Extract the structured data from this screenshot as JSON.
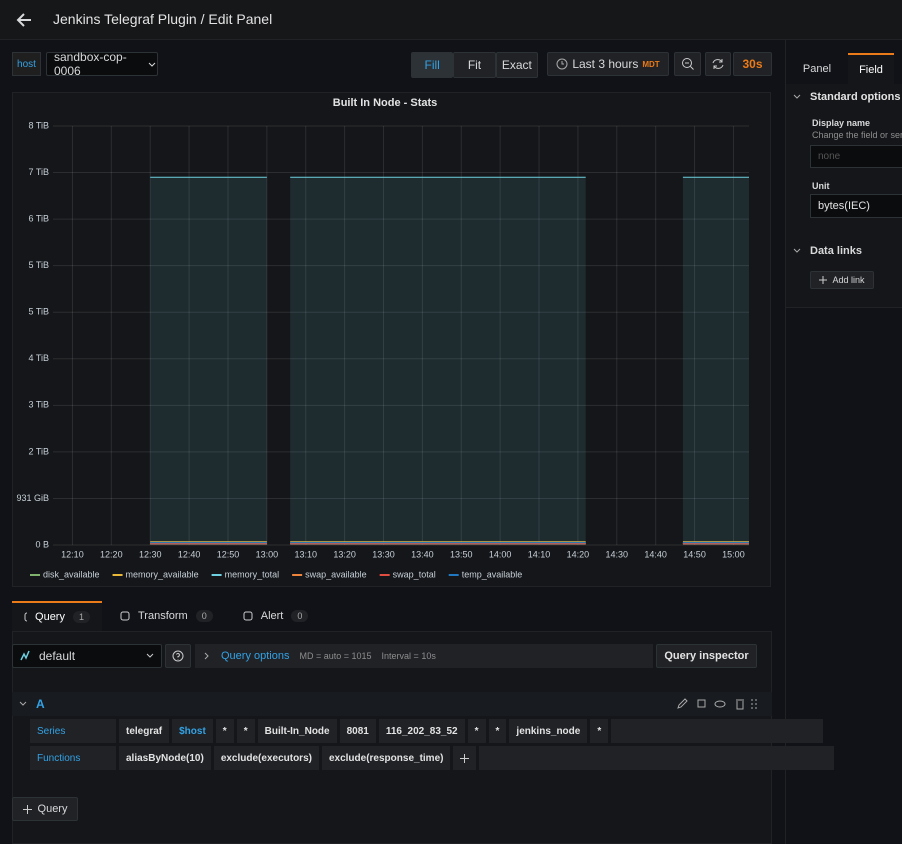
{
  "header": {
    "title": "Jenkins Telegraf Plugin / Edit Panel"
  },
  "toolbar": {
    "variable_label": "host",
    "variable_value": "sandbox-cop-0006",
    "view_modes": [
      "Fill",
      "Fit",
      "Exact"
    ],
    "time_range": "Last 3 hours",
    "timezone": "MDT",
    "refresh": "30s"
  },
  "chart_data": {
    "type": "line",
    "title": "Built In Node - Stats",
    "x": [
      "12:30",
      "13:00",
      "13:01",
      "13:06",
      "14:22",
      "14:23",
      "14:47",
      "15:04"
    ],
    "xlim": [
      "12:05",
      "15:04"
    ],
    "xticks": [
      "12:10",
      "12:20",
      "12:30",
      "12:40",
      "12:50",
      "13:00",
      "13:10",
      "13:20",
      "13:30",
      "13:40",
      "13:50",
      "14:00",
      "14:10",
      "14:20",
      "14:30",
      "14:40",
      "14:50",
      "15:00"
    ],
    "ylim": [
      0,
      9000000000000
    ],
    "yticks": [
      {
        "value": 0,
        "label": "0 B"
      },
      {
        "value": 1000000000000,
        "label": "931 GiB"
      },
      {
        "value": 2000000000000,
        "label": "2 TiB"
      },
      {
        "value": 3000000000000,
        "label": "3 TiB"
      },
      {
        "value": 4000000000000,
        "label": "4 TiB"
      },
      {
        "value": 5000000000000,
        "label": "5 TiB"
      },
      {
        "value": 6000000000000,
        "label": "5 TiB"
      },
      {
        "value": 7000000000000,
        "label": "6 TiB"
      },
      {
        "value": 8000000000000,
        "label": "7 TiB"
      },
      {
        "value": 9000000000000,
        "label": "8 TiB"
      }
    ],
    "grid": true,
    "legend": "bottom",
    "series": [
      {
        "name": "disk_available",
        "color": "#7eb26d",
        "values": [
          40000000000,
          40000000000,
          null,
          40000000000,
          40000000000,
          null,
          40000000000,
          40000000000
        ]
      },
      {
        "name": "memory_available",
        "color": "#eab839",
        "values": [
          70000000000,
          70000000000,
          null,
          70000000000,
          70000000000,
          null,
          70000000000,
          70000000000
        ]
      },
      {
        "name": "memory_total",
        "color": "#6ed0e0",
        "values": [
          7900000000000,
          7900000000000,
          null,
          7900000000000,
          7900000000000,
          null,
          7900000000000,
          7900000000000
        ]
      },
      {
        "name": "swap_available",
        "color": "#ef843c",
        "values": [
          30000000000,
          30000000000,
          null,
          30000000000,
          30000000000,
          null,
          30000000000,
          30000000000
        ]
      },
      {
        "name": "swap_total",
        "color": "#e24d42",
        "values": [
          30000000000,
          30000000000,
          null,
          30000000000,
          30000000000,
          null,
          30000000000,
          30000000000
        ]
      },
      {
        "name": "temp_available",
        "color": "#1f78c1",
        "values": [
          50000000000,
          50000000000,
          null,
          50000000000,
          50000000000,
          null,
          50000000000,
          50000000000
        ]
      }
    ]
  },
  "options_pane": {
    "tabs": [
      "Panel",
      "Field"
    ],
    "standard_options": "Standard options",
    "display_name_label": "Display name",
    "display_name_hint": "Change the field or seri",
    "display_name_placeholder": "none",
    "unit_label": "Unit",
    "unit_value": "bytes(IEC)",
    "data_links": "Data links",
    "add_link": "Add link"
  },
  "query_tabs": [
    {
      "label": "Query",
      "count": 1
    },
    {
      "label": "Transform",
      "count": 0
    },
    {
      "label": "Alert",
      "count": 0
    }
  ],
  "query_bar": {
    "datasource": "default",
    "query_options": "Query options",
    "max_data_points": "MD = auto = 1015",
    "interval": "Interval = 10s",
    "inspector": "Query inspector"
  },
  "query": {
    "ref_id": "A",
    "series_label": "Series",
    "series_segments": [
      "telegraf",
      "$host",
      "*",
      "*",
      "Built-In_Node",
      "8081",
      "116_202_83_52",
      "*",
      "*",
      "jenkins_node",
      "*"
    ],
    "functions_label": "Functions",
    "functions": [
      "aliasByNode(10)",
      "exclude(executors)",
      "exclude(response_time)"
    ]
  },
  "add_query": "Query"
}
